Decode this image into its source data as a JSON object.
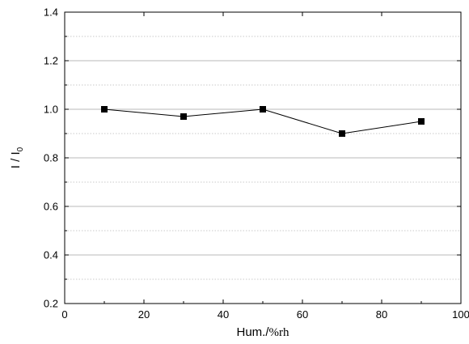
{
  "chart_data": {
    "type": "line",
    "title": "",
    "xlabel": "Hum./",
    "xlabel_unit": "%rh",
    "ylabel": "I / I",
    "ylabel_subscript": "0",
    "xlim": [
      0,
      100
    ],
    "ylim": [
      0.2,
      1.4
    ],
    "x_ticks": [
      0,
      20,
      40,
      60,
      80,
      100
    ],
    "x_tick_labels": [
      "0",
      "20",
      "40",
      "60",
      "80",
      "100"
    ],
    "y_ticks": [
      0.2,
      0.4,
      0.6,
      0.8,
      1.0,
      1.2,
      1.4
    ],
    "y_tick_labels": [
      "0.2",
      "0.4",
      "0.6",
      "0.8",
      "1.0",
      "1.2",
      "1.4"
    ],
    "y_minor_grid": [
      0.3,
      0.5,
      0.7,
      0.9,
      1.1,
      1.3
    ],
    "grid": true,
    "legend": "none",
    "marker": "square",
    "series": [
      {
        "x": [
          10,
          30,
          50,
          70,
          90
        ],
        "values": [
          1.0,
          0.97,
          1.0,
          0.9,
          0.95
        ]
      }
    ]
  },
  "colors": {
    "line": "#000000",
    "marker": "#000000",
    "major_grid": "#a0a0a0",
    "minor_grid": "#b8b8b8",
    "axis": "#000000"
  }
}
